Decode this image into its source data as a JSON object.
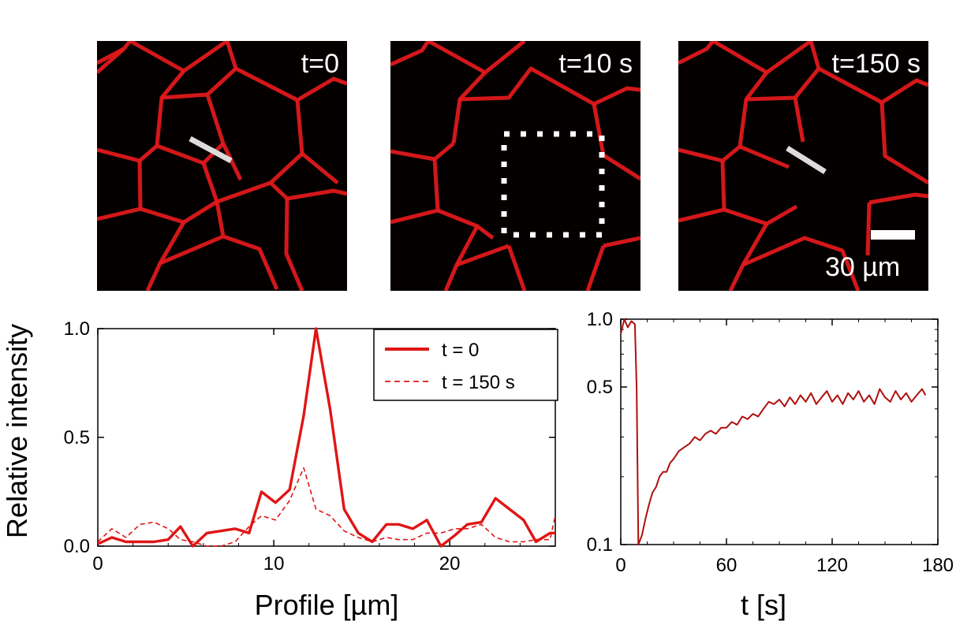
{
  "images": {
    "frame1_label": "t=0",
    "frame2_label": "t=10 s",
    "frame3_label": "t=150 s",
    "scale_bar_label": "30 µm"
  },
  "colors": {
    "membrane": "#e5191c",
    "profile_line": "#e01515",
    "recovery_line": "#b00f0f"
  },
  "chart_data": [
    {
      "type": "line",
      "xlabel": "Profile [µm]",
      "ylabel": "Relative intensity",
      "xlim": [
        0,
        26
      ],
      "ylim": [
        0,
        1.0
      ],
      "xticks": [
        0,
        10,
        20
      ],
      "yticks": [
        0.0,
        0.5,
        1.0
      ],
      "ytick_labels": [
        "0.0",
        "0.5",
        "1.0"
      ],
      "legend_position": "top-right",
      "series": [
        {
          "name": "t = 0",
          "style": "solid",
          "x": [
            0,
            0.8,
            1.6,
            2.4,
            3.2,
            4.0,
            4.7,
            5.4,
            6.2,
            7.0,
            7.8,
            8.6,
            9.3,
            10.1,
            10.9,
            11.7,
            12.4,
            13.2,
            14.0,
            14.8,
            15.6,
            16.4,
            17.1,
            17.9,
            18.7,
            19.5,
            20.3,
            21.0,
            21.8,
            22.6,
            23.4,
            24.2,
            24.9,
            25.7,
            26.0
          ],
          "y": [
            0.01,
            0.04,
            0.02,
            0.02,
            0.02,
            0.03,
            0.09,
            0.0,
            0.06,
            0.07,
            0.08,
            0.06,
            0.25,
            0.2,
            0.26,
            0.6,
            1.0,
            0.63,
            0.17,
            0.06,
            0.02,
            0.1,
            0.1,
            0.08,
            0.12,
            0.0,
            0.05,
            0.1,
            0.11,
            0.22,
            0.17,
            0.12,
            0.02,
            0.06,
            0.06
          ]
        },
        {
          "name": "t = 150 s",
          "style": "dashed",
          "x": [
            0,
            0.8,
            1.6,
            2.4,
            3.2,
            4.0,
            4.7,
            5.4,
            6.2,
            7.0,
            7.8,
            8.6,
            9.3,
            10.1,
            10.9,
            11.7,
            12.4,
            13.2,
            14.0,
            14.8,
            15.6,
            16.4,
            17.1,
            17.9,
            18.7,
            19.5,
            20.3,
            21.0,
            21.8,
            22.6,
            23.4,
            24.2,
            24.9,
            25.7,
            26.0
          ],
          "y": [
            0.02,
            0.08,
            0.04,
            0.1,
            0.11,
            0.08,
            0.03,
            0.02,
            0.0,
            0.0,
            0.02,
            0.09,
            0.14,
            0.12,
            0.21,
            0.36,
            0.17,
            0.14,
            0.07,
            0.04,
            0.02,
            0.04,
            0.03,
            0.03,
            0.06,
            0.06,
            0.08,
            0.08,
            0.1,
            0.04,
            0.02,
            0.02,
            0.03,
            0.03,
            0.14
          ]
        }
      ]
    },
    {
      "type": "line",
      "xlabel": "t [s]",
      "ylabel": "",
      "xlim": [
        0,
        180
      ],
      "ylim": [
        0.1,
        1.0
      ],
      "yscale": "log",
      "xticks": [
        0,
        60,
        120,
        180
      ],
      "yticks": [
        0.1,
        0.5,
        1.0
      ],
      "ytick_labels": [
        "0.1",
        "0.5",
        "1.0"
      ],
      "series": [
        {
          "style": "solid",
          "x": [
            0,
            2,
            4,
            6,
            8,
            9,
            10,
            12,
            14,
            16,
            18,
            20,
            22,
            24,
            26,
            28,
            30,
            33,
            36,
            39,
            42,
            45,
            48,
            51,
            54,
            57,
            60,
            63,
            66,
            69,
            72,
            75,
            78,
            81,
            84,
            87,
            90,
            93,
            96,
            99,
            102,
            105,
            108,
            111,
            114,
            117,
            120,
            123,
            126,
            129,
            132,
            135,
            138,
            141,
            144,
            147,
            150,
            153,
            156,
            159,
            162,
            165,
            168,
            171,
            173
          ],
          "y": [
            0.86,
            1.0,
            0.92,
            0.98,
            0.95,
            0.5,
            0.1,
            0.11,
            0.13,
            0.15,
            0.17,
            0.18,
            0.2,
            0.21,
            0.21,
            0.23,
            0.24,
            0.26,
            0.27,
            0.28,
            0.3,
            0.29,
            0.31,
            0.32,
            0.31,
            0.33,
            0.33,
            0.35,
            0.34,
            0.37,
            0.36,
            0.38,
            0.37,
            0.4,
            0.43,
            0.42,
            0.44,
            0.41,
            0.45,
            0.42,
            0.46,
            0.43,
            0.47,
            0.42,
            0.45,
            0.48,
            0.43,
            0.46,
            0.42,
            0.47,
            0.44,
            0.48,
            0.43,
            0.46,
            0.42,
            0.49,
            0.45,
            0.43,
            0.48,
            0.44,
            0.47,
            0.43,
            0.46,
            0.49,
            0.46
          ]
        }
      ]
    }
  ]
}
